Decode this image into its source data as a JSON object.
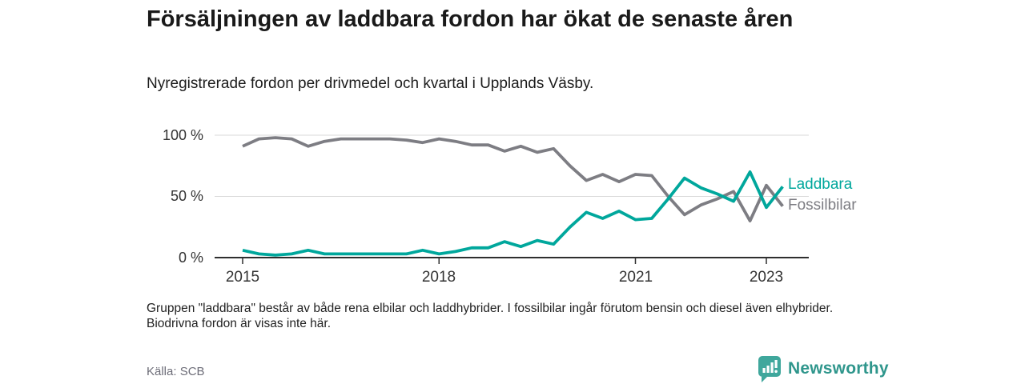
{
  "header": {
    "title": "Försäljningen av laddbara fordon har ökat de senaste åren",
    "subtitle": "Nyregistrerade fordon per drivmedel och kvartal i Upplands Väsby."
  },
  "chart_data": {
    "type": "line",
    "x": [
      "2015-Q1",
      "2015-Q2",
      "2015-Q3",
      "2015-Q4",
      "2016-Q1",
      "2016-Q2",
      "2016-Q3",
      "2016-Q4",
      "2017-Q1",
      "2017-Q2",
      "2017-Q3",
      "2017-Q4",
      "2018-Q1",
      "2018-Q2",
      "2018-Q3",
      "2018-Q4",
      "2019-Q1",
      "2019-Q2",
      "2019-Q3",
      "2019-Q4",
      "2020-Q1",
      "2020-Q2",
      "2020-Q3",
      "2020-Q4",
      "2021-Q1",
      "2021-Q2",
      "2021-Q3",
      "2021-Q4",
      "2022-Q1",
      "2022-Q2",
      "2022-Q3",
      "2022-Q4",
      "2023-Q1",
      "2023-Q2"
    ],
    "series": [
      {
        "name": "Fossilbilar",
        "color": "#7d7d83",
        "values": [
          91,
          97,
          98,
          97,
          91,
          95,
          97,
          97,
          97,
          97,
          96,
          94,
          97,
          95,
          92,
          92,
          87,
          91,
          86,
          89,
          75,
          63,
          68,
          62,
          68,
          67,
          50,
          35,
          43,
          48,
          54,
          30,
          59,
          42
        ]
      },
      {
        "name": "Laddbara",
        "color": "#00a79c",
        "values": [
          6,
          3,
          2,
          3,
          6,
          3,
          3,
          3,
          3,
          3,
          3,
          6,
          3,
          5,
          8,
          8,
          13,
          9,
          14,
          11,
          25,
          37,
          32,
          38,
          31,
          32,
          48,
          65,
          57,
          52,
          46,
          70,
          41,
          58
        ]
      }
    ],
    "unit": "%",
    "ylim": [
      0,
      100
    ],
    "yticks": [
      {
        "label": "100 %",
        "value": 100
      },
      {
        "label": "50 %",
        "value": 50
      },
      {
        "label": "0 %",
        "value": 0
      }
    ],
    "xticks": [
      {
        "label": "2015",
        "index": 0
      },
      {
        "label": "2018",
        "index": 12
      },
      {
        "label": "2021",
        "index": 24
      },
      {
        "label": "2023",
        "index": 32
      }
    ],
    "grid": "horizontal",
    "legend_position": "line-end-labels-right"
  },
  "style": {
    "grid_color": "#d9d9d9",
    "axis_color": "#2f2f2f"
  },
  "footnote": "Gruppen \"laddbara\" består av både rena elbilar och laddhybrider. I fossilbilar ingår förutom bensin och diesel även elhybrider. Biodrivna fordon är visas inte här.",
  "source": "Källa: SCB",
  "branding": {
    "name": "Newsworthy",
    "badge_color": "#3fa79c",
    "text_color": "#2f968c",
    "badge_icon": "bar-chart-pin-icon"
  }
}
